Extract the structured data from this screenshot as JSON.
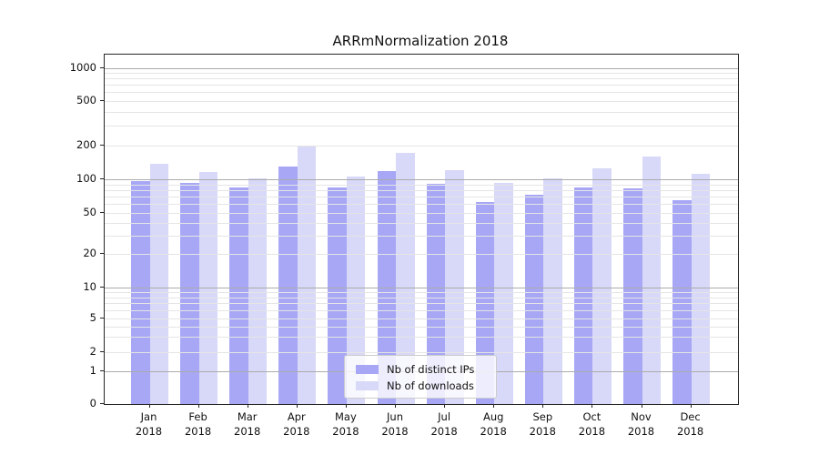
{
  "chart_data": {
    "type": "bar",
    "title": "ARRmNormalization 2018",
    "categories": [
      "Jan",
      "Feb",
      "Mar",
      "Apr",
      "May",
      "Jun",
      "Jul",
      "Aug",
      "Sep",
      "Oct",
      "Nov",
      "Dec"
    ],
    "category_sub": "2018",
    "series": [
      {
        "name": "Nb of distinct IPs",
        "color": "#a7a7f6",
        "values": [
          97,
          94,
          85,
          131,
          84,
          119,
          92,
          62,
          73,
          84,
          83,
          65
        ]
      },
      {
        "name": "Nb of downloads",
        "color": "#d8d8f8",
        "values": [
          138,
          116,
          103,
          200,
          107,
          173,
          122,
          94,
          103,
          125,
          159,
          112
        ]
      }
    ],
    "yscale": "symlog",
    "ylim": [
      0,
      1300
    ],
    "yticks": [
      0,
      1,
      2,
      5,
      10,
      20,
      50,
      100,
      200,
      500,
      1000
    ],
    "grid": true,
    "grid_major": [
      1,
      10,
      100,
      1000
    ],
    "grid_minor": [
      2,
      3,
      4,
      5,
      6,
      7,
      8,
      9,
      20,
      30,
      40,
      50,
      60,
      70,
      80,
      90,
      200,
      300,
      400,
      500,
      600,
      700,
      800,
      900
    ],
    "legend_position": "lower center",
    "colors": {
      "grid_major": "#ababab",
      "grid_minor": "#e5e5e5",
      "axis": "#262626"
    }
  }
}
